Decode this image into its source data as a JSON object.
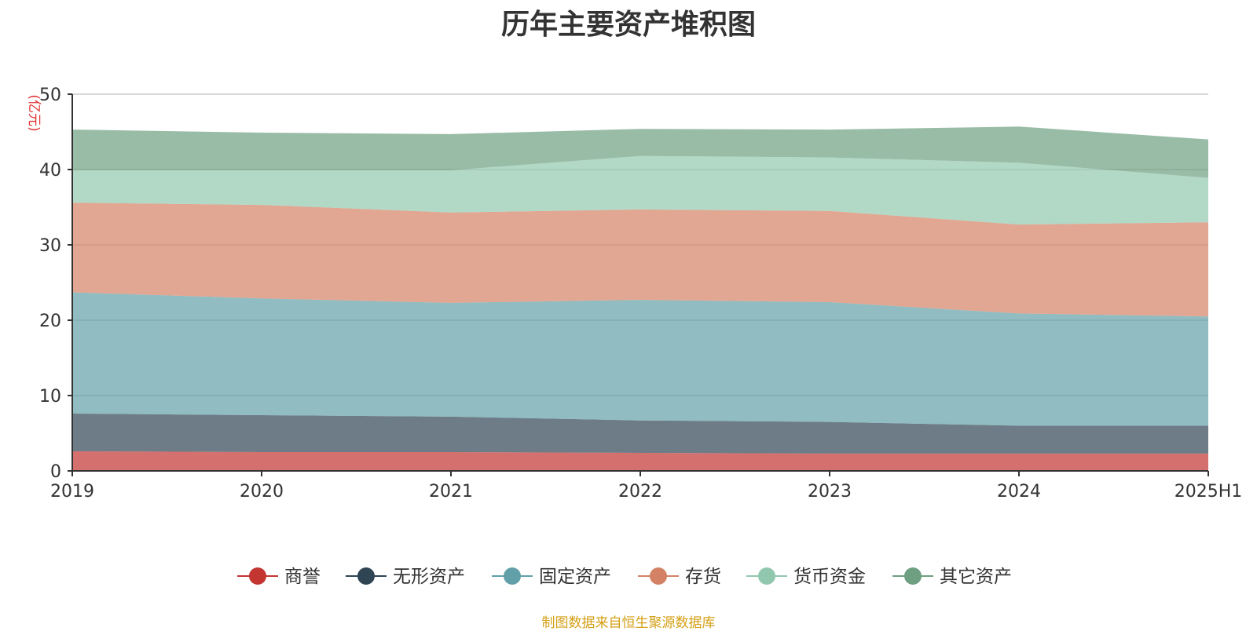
{
  "chart_data": {
    "type": "area",
    "stacked": true,
    "title": "历年主要资产堆积图",
    "ylabel": "亿元",
    "ylabel_display": "(亿元)",
    "x": [
      "2019",
      "2020",
      "2021",
      "2022",
      "2023",
      "2024",
      "2025H1"
    ],
    "ylim": [
      0,
      50
    ],
    "yticks": [
      0,
      10,
      20,
      30,
      40,
      50
    ],
    "grid": true,
    "legend_position": "bottom",
    "series": [
      {
        "name": "商誉",
        "color": "#c23531",
        "values": [
          2.6,
          2.5,
          2.5,
          2.4,
          2.3,
          2.3,
          2.3
        ]
      },
      {
        "name": "无形资产",
        "color": "#2f4554",
        "values": [
          5.0,
          4.9,
          4.7,
          4.3,
          4.2,
          3.7,
          3.7
        ]
      },
      {
        "name": "固定资产",
        "color": "#61a0a8",
        "values": [
          16.1,
          15.5,
          15.1,
          16.0,
          15.9,
          14.9,
          14.5
        ]
      },
      {
        "name": "存货",
        "color": "#d48265",
        "values": [
          11.9,
          12.4,
          12.0,
          12.0,
          12.1,
          11.8,
          12.5
        ]
      },
      {
        "name": "货币资金",
        "color": "#91c7ae",
        "values": [
          4.3,
          4.6,
          5.6,
          7.1,
          7.1,
          8.2,
          5.9
        ]
      },
      {
        "name": "其它资产",
        "color": "#6e9f80",
        "values": [
          5.4,
          5.0,
          4.8,
          3.6,
          3.7,
          4.8,
          5.1
        ]
      }
    ]
  },
  "footer": {
    "note": "制图数据来自恒生聚源数据库"
  }
}
